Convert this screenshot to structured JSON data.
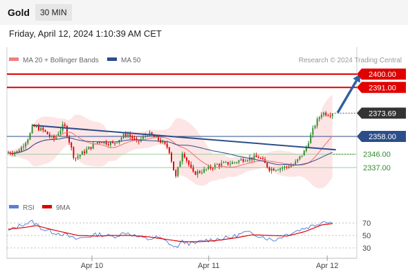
{
  "header": {
    "instrument": "Gold",
    "timeframe": "30 MIN",
    "datetime": "Friday, April 12, 2024 1:10:39 AM CET"
  },
  "legend": {
    "ma20_bb": "MA 20 + Bollinger Bands",
    "ma50": "MA 50",
    "rsi": "RSI",
    "rsi_ma": "9MA"
  },
  "copyright": "Research © 2024 Trading Central",
  "colors": {
    "bollinger_fill": "#fcdcdc",
    "ma20": "#f08080",
    "ma50": "#2c4d8a",
    "resistance": "#e00000",
    "pivot": "#2c4d8a",
    "support": "#2e8b2e",
    "candle_up": "#2e8b2e",
    "candle_down": "#e00000",
    "rsi_line": "#5b7fd6",
    "rsi_ma": "#e00000",
    "current_price": "#333333",
    "target_arrow": "#2c5fa8"
  },
  "chart_data": [
    {
      "type": "candlestick",
      "title": "Gold 30 MIN",
      "x_ticks": [
        "Apr 10",
        "Apr 11",
        "Apr 12"
      ],
      "ylim": [
        2325,
        2405
      ],
      "levels": [
        {
          "label": "2400.00",
          "value": 2400.0,
          "role": "resistance",
          "style": "badge"
        },
        {
          "label": "2391.00",
          "value": 2391.0,
          "role": "resistance",
          "style": "badge"
        },
        {
          "label": "2373.69",
          "value": 2373.69,
          "role": "current",
          "style": "badge"
        },
        {
          "label": "2358.00",
          "value": 2358.0,
          "role": "pivot",
          "style": "badge"
        },
        {
          "label": "2346.00",
          "value": 2346.0,
          "role": "support",
          "style": "text"
        },
        {
          "label": "2337.00",
          "value": 2337.0,
          "role": "support",
          "style": "text"
        }
      ],
      "trendline": {
        "from": {
          "x": 0.07,
          "y": 2365.5
        },
        "to": {
          "x": 0.94,
          "y": 2349.0
        }
      },
      "target_arrow": {
        "from": {
          "x": 0.945,
          "y": 2374.0
        },
        "to": {
          "x": 1.01,
          "y": 2400.0
        }
      },
      "series": [
        {
          "name": "Price",
          "anchors": [
            [
              0.0,
              2347
            ],
            [
              0.03,
              2348
            ],
            [
              0.06,
              2358
            ],
            [
              0.07,
              2365
            ],
            [
              0.1,
              2362
            ],
            [
              0.13,
              2356
            ],
            [
              0.16,
              2366
            ],
            [
              0.19,
              2343
            ],
            [
              0.22,
              2348
            ],
            [
              0.26,
              2355
            ],
            [
              0.3,
              2353
            ],
            [
              0.34,
              2360
            ],
            [
              0.37,
              2354
            ],
            [
              0.4,
              2360
            ],
            [
              0.43,
              2356
            ],
            [
              0.46,
              2350
            ],
            [
              0.48,
              2330
            ],
            [
              0.5,
              2348
            ],
            [
              0.53,
              2333
            ],
            [
              0.56,
              2335
            ],
            [
              0.6,
              2339
            ],
            [
              0.64,
              2340
            ],
            [
              0.68,
              2343
            ],
            [
              0.72,
              2344
            ],
            [
              0.75,
              2336
            ],
            [
              0.79,
              2337
            ],
            [
              0.82,
              2339
            ],
            [
              0.85,
              2348
            ],
            [
              0.88,
              2366
            ],
            [
              0.9,
              2374
            ],
            [
              0.92,
              2373
            ],
            [
              0.93,
              2373.7
            ]
          ]
        }
      ]
    },
    {
      "type": "line",
      "title": "RSI",
      "x_ticks": [
        "Apr 10",
        "Apr 11",
        "Apr 12"
      ],
      "y_ticks": [
        70,
        50,
        30
      ],
      "ylim": [
        20,
        80
      ],
      "series": [
        {
          "name": "RSI",
          "anchors": [
            [
              0.0,
              57
            ],
            [
              0.04,
              68
            ],
            [
              0.07,
              72
            ],
            [
              0.1,
              60
            ],
            [
              0.13,
              55
            ],
            [
              0.16,
              52
            ],
            [
              0.19,
              44
            ],
            [
              0.22,
              47
            ],
            [
              0.26,
              52
            ],
            [
              0.3,
              48
            ],
            [
              0.34,
              55
            ],
            [
              0.37,
              48
            ],
            [
              0.4,
              44
            ],
            [
              0.43,
              47
            ],
            [
              0.46,
              38
            ],
            [
              0.48,
              30
            ],
            [
              0.5,
              40
            ],
            [
              0.53,
              36
            ],
            [
              0.56,
              42
            ],
            [
              0.6,
              44
            ],
            [
              0.64,
              47
            ],
            [
              0.68,
              55
            ],
            [
              0.72,
              50
            ],
            [
              0.76,
              42
            ],
            [
              0.8,
              52
            ],
            [
              0.84,
              60
            ],
            [
              0.88,
              67
            ],
            [
              0.91,
              74
            ],
            [
              0.93,
              70
            ]
          ]
        },
        {
          "name": "9MA",
          "anchors": [
            [
              0.0,
              60
            ],
            [
              0.05,
              63
            ],
            [
              0.08,
              66
            ],
            [
              0.12,
              60
            ],
            [
              0.16,
              55
            ],
            [
              0.2,
              50
            ],
            [
              0.25,
              49
            ],
            [
              0.3,
              50
            ],
            [
              0.35,
              50
            ],
            [
              0.4,
              48
            ],
            [
              0.45,
              44
            ],
            [
              0.5,
              40
            ],
            [
              0.55,
              40
            ],
            [
              0.6,
              42
            ],
            [
              0.65,
              46
            ],
            [
              0.7,
              51
            ],
            [
              0.75,
              50
            ],
            [
              0.8,
              49
            ],
            [
              0.85,
              56
            ],
            [
              0.9,
              67
            ],
            [
              0.93,
              69
            ]
          ]
        }
      ]
    }
  ]
}
